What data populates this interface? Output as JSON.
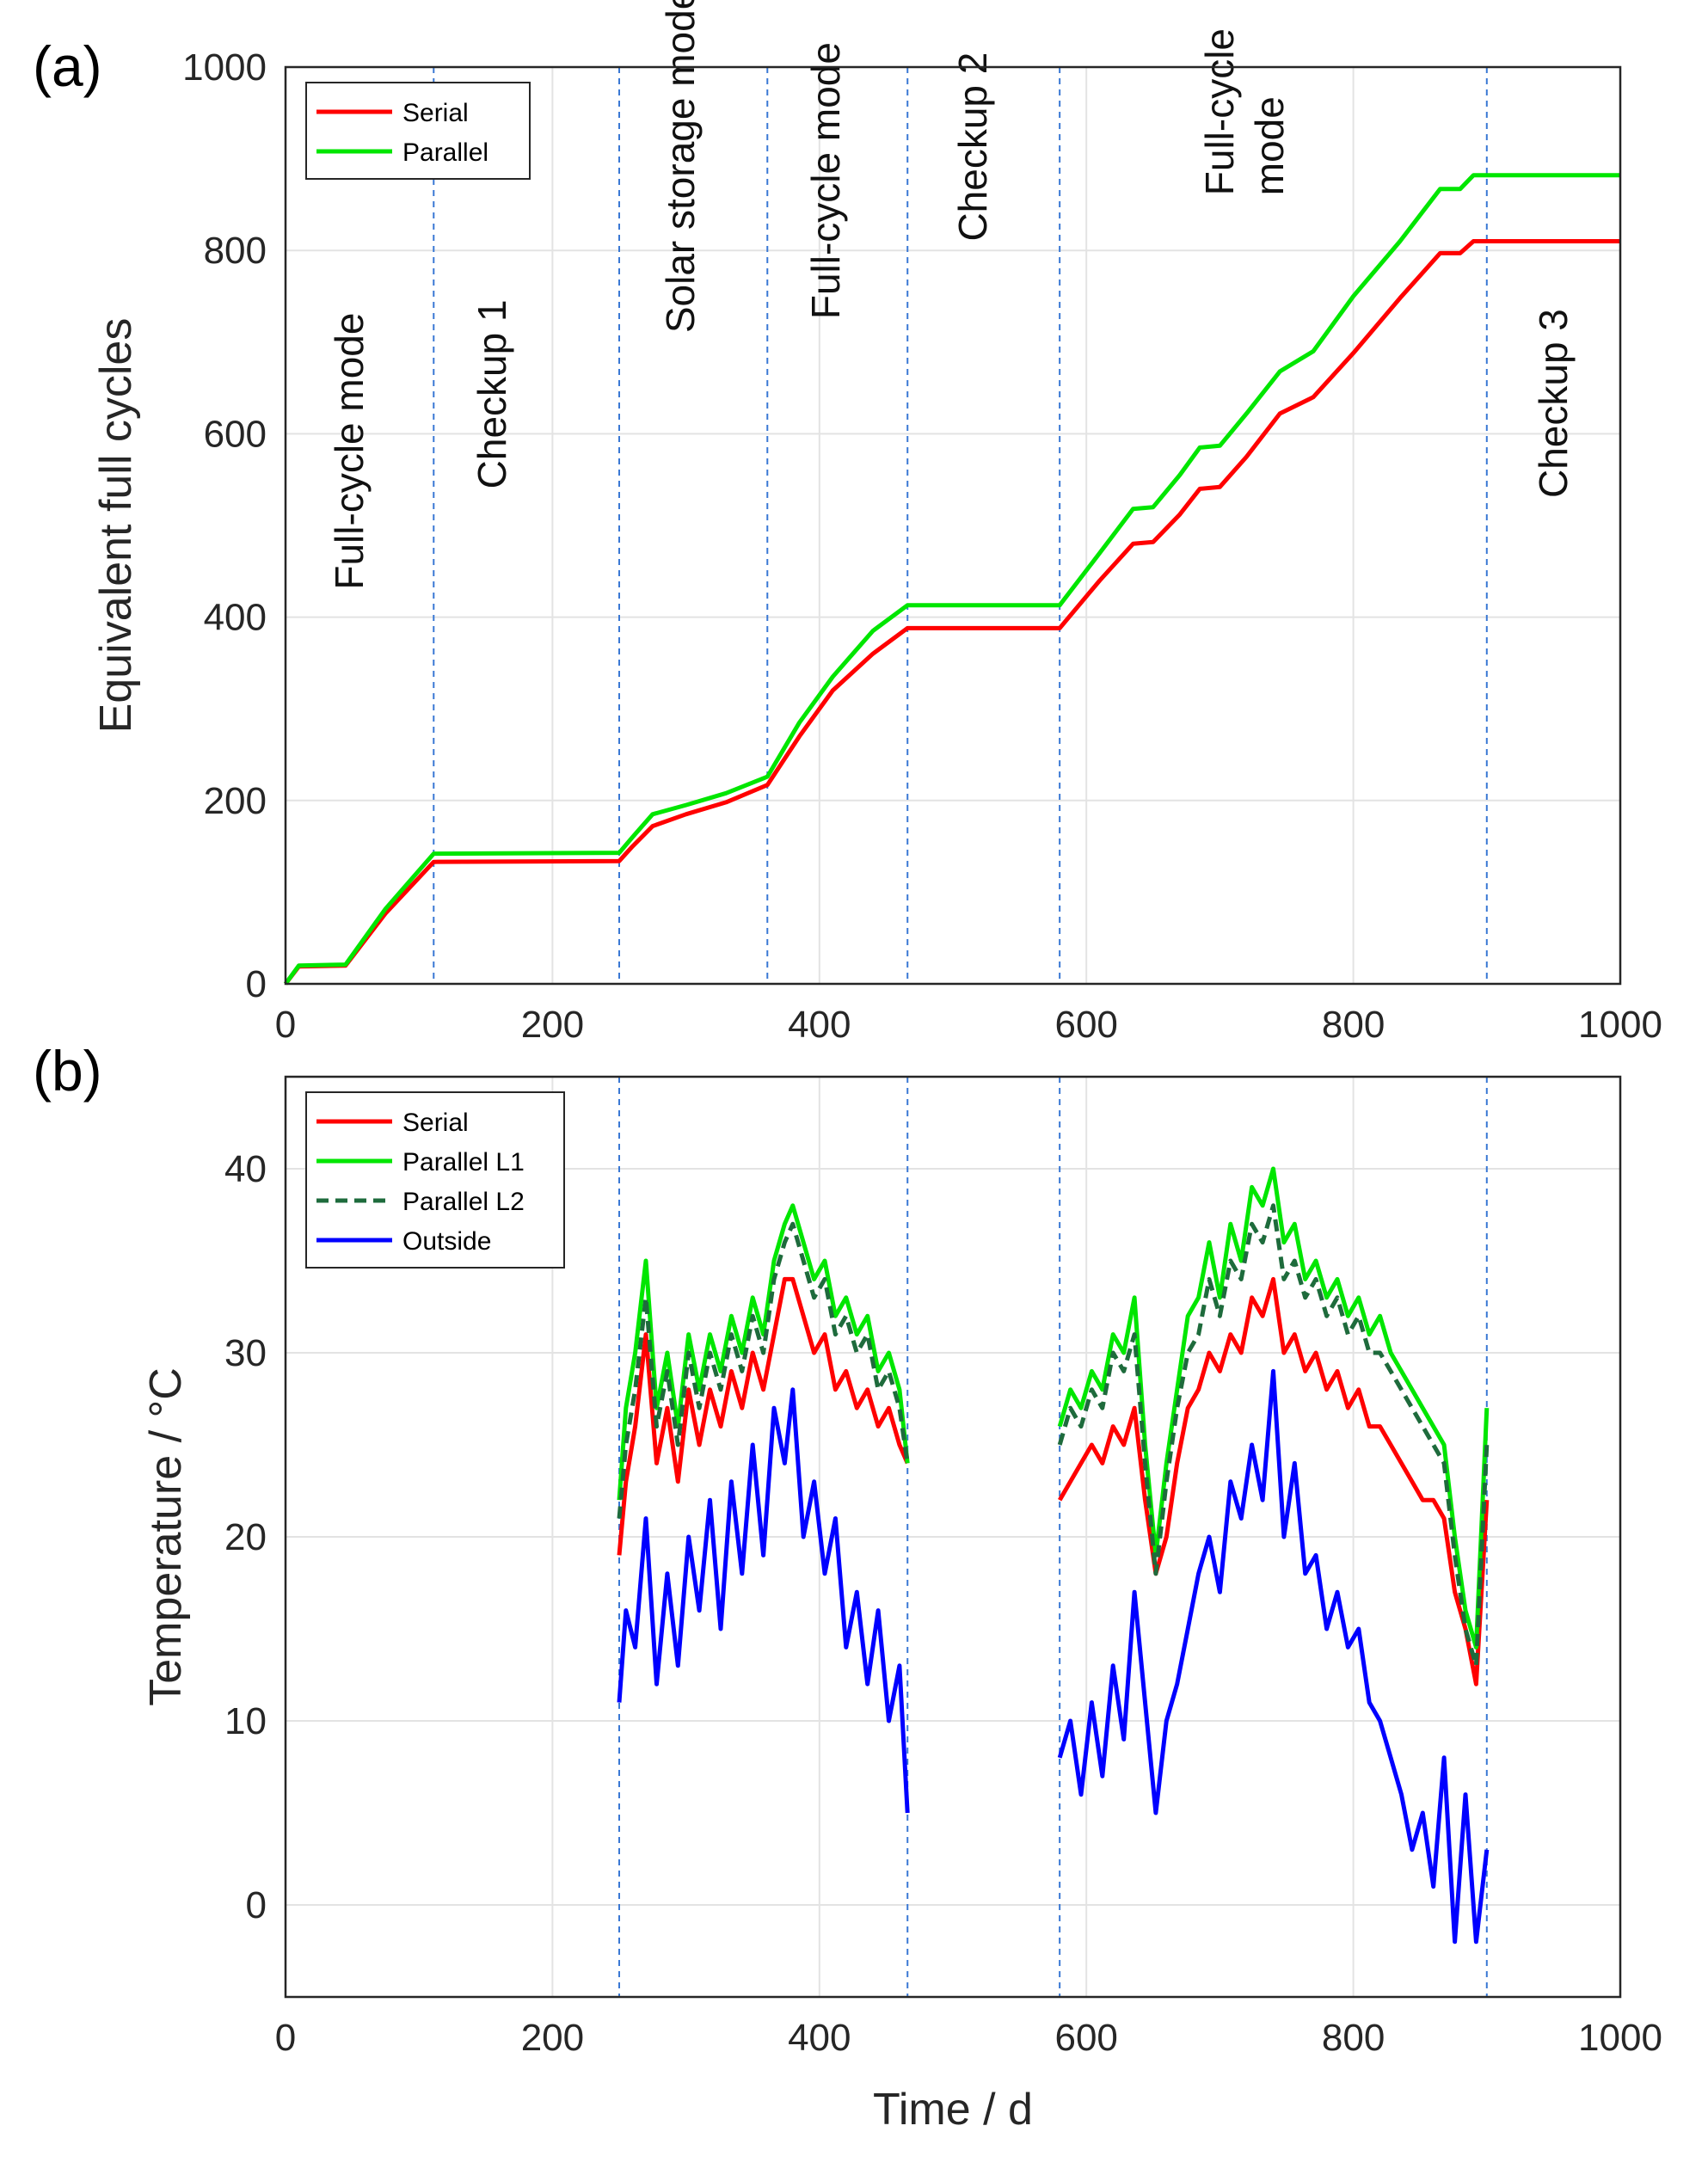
{
  "chart_data": [
    {
      "panel_label": "(a)",
      "type": "line",
      "title": "",
      "xlabel": "",
      "ylabel": "Equivalent full cycles",
      "xlim": [
        0,
        1000
      ],
      "ylim": [
        0,
        1000
      ],
      "xticks": [
        0,
        200,
        400,
        600,
        800,
        1000
      ],
      "yticks": [
        0,
        200,
        400,
        600,
        800,
        1000
      ],
      "grid": true,
      "legend_position": "top-left",
      "phase_boundaries": [
        111,
        250,
        361,
        466,
        580,
        900
      ],
      "phase_labels": [
        {
          "text": "Full-cycle mode",
          "x": 58,
          "y": 430
        },
        {
          "text": "Checkup 1",
          "x": 165,
          "y": 540
        },
        {
          "text": "Solar storage mode",
          "x": 306,
          "y": 710
        },
        {
          "text": "Full-cycle mode",
          "x": 415,
          "y": 725
        },
        {
          "text": "Checkup 2",
          "x": 525,
          "y": 810
        },
        {
          "text": "Full-cycle\nmode",
          "x": 710,
          "y": 860
        },
        {
          "text": "Checkup 3",
          "x": 960,
          "y": 530
        }
      ],
      "series": [
        {
          "name": "Serial",
          "color": "#ff0000",
          "x": [
            0,
            10,
            45,
            75,
            111,
            250,
            260,
            275,
            300,
            330,
            361,
            385,
            410,
            440,
            466,
            580,
            610,
            635,
            650,
            670,
            685,
            700,
            720,
            745,
            770,
            800,
            835,
            865,
            880,
            890,
            1000
          ],
          "y": [
            0,
            19,
            20,
            77,
            133,
            134,
            150,
            172,
            185,
            198,
            217,
            270,
            320,
            360,
            388,
            388,
            440,
            480,
            482,
            512,
            540,
            542,
            575,
            622,
            640,
            688,
            748,
            797,
            797,
            810,
            810
          ]
        },
        {
          "name": "Parallel",
          "color": "#00e600",
          "x": [
            0,
            10,
            45,
            75,
            111,
            250,
            260,
            275,
            300,
            330,
            361,
            385,
            410,
            440,
            466,
            580,
            610,
            635,
            650,
            670,
            685,
            700,
            720,
            745,
            770,
            800,
            835,
            865,
            880,
            890,
            1000
          ],
          "y": [
            0,
            20,
            21,
            82,
            142,
            143,
            160,
            185,
            195,
            208,
            226,
            285,
            335,
            385,
            413,
            413,
            470,
            518,
            520,
            555,
            585,
            587,
            622,
            668,
            690,
            750,
            810,
            867,
            867,
            882,
            882
          ]
        }
      ]
    },
    {
      "panel_label": "(b)",
      "type": "line",
      "title": "",
      "xlabel": "Time / d",
      "ylabel": "Temperature / °C",
      "xlim": [
        0,
        1000
      ],
      "ylim": [
        -5,
        45
      ],
      "xticks": [
        0,
        200,
        400,
        600,
        800,
        1000
      ],
      "yticks": [
        0,
        10,
        20,
        30,
        40
      ],
      "grid": true,
      "legend_position": "top-left",
      "phase_boundaries": [
        250,
        466,
        580,
        900
      ],
      "series": [
        {
          "name": "Serial",
          "color": "#ff0000",
          "style": "solid",
          "segments": [
            {
              "x": [
                250,
                255,
                262,
                270,
                278,
                286,
                294,
                302,
                310,
                318,
                326,
                334,
                342,
                350,
                358,
                366,
                374,
                380,
                388,
                396,
                404,
                412,
                420,
                428,
                436,
                444,
                452,
                460,
                466
              ],
              "y": [
                19,
                23,
                26,
                31,
                24,
                27,
                23,
                28,
                25,
                28,
                26,
                29,
                27,
                30,
                28,
                31,
                34,
                34,
                32,
                30,
                31,
                28,
                29,
                27,
                28,
                26,
                27,
                25,
                24
              ]
            },
            {
              "x": [
                580,
                588,
                596,
                604,
                612,
                620,
                628,
                636,
                644,
                652,
                660,
                668,
                676,
                684,
                692,
                700,
                708,
                716,
                724,
                732,
                740,
                748,
                756,
                764,
                772,
                780,
                788,
                796,
                804,
                812,
                820,
                828,
                836,
                844,
                852,
                860,
                868,
                876,
                884,
                892,
                900
              ],
              "y": [
                22,
                23,
                24,
                25,
                24,
                26,
                25,
                27,
                22,
                18,
                20,
                24,
                27,
                28,
                30,
                29,
                31,
                30,
                33,
                32,
                34,
                30,
                31,
                29,
                30,
                28,
                29,
                27,
                28,
                26,
                26,
                25,
                24,
                23,
                22,
                22,
                21,
                17,
                15,
                12,
                22
              ]
            }
          ]
        },
        {
          "name": "Parallel L1",
          "color": "#00e600",
          "style": "solid",
          "segments": [
            {
              "x": [
                250,
                255,
                262,
                270,
                278,
                286,
                294,
                302,
                310,
                318,
                326,
                334,
                342,
                350,
                358,
                366,
                374,
                380,
                388,
                396,
                404,
                412,
                420,
                428,
                436,
                444,
                452,
                460,
                466
              ],
              "y": [
                22,
                27,
                30,
                35,
                27,
                30,
                26,
                31,
                28,
                31,
                29,
                32,
                30,
                33,
                31,
                35,
                37,
                38,
                36,
                34,
                35,
                32,
                33,
                31,
                32,
                29,
                30,
                28,
                24
              ]
            },
            {
              "x": [
                580,
                588,
                596,
                604,
                612,
                620,
                628,
                636,
                644,
                652,
                660,
                668,
                676,
                684,
                692,
                700,
                708,
                716,
                724,
                732,
                740,
                748,
                756,
                764,
                772,
                780,
                788,
                796,
                804,
                812,
                820,
                828,
                836,
                844,
                852,
                860,
                868,
                876,
                884,
                892,
                900
              ],
              "y": [
                26,
                28,
                27,
                29,
                28,
                31,
                30,
                33,
                25,
                19,
                24,
                28,
                32,
                33,
                36,
                33,
                37,
                35,
                39,
                38,
                40,
                36,
                37,
                34,
                35,
                33,
                34,
                32,
                33,
                31,
                32,
                30,
                29,
                28,
                27,
                26,
                25,
                20,
                16,
                14,
                27
              ]
            }
          ]
        },
        {
          "name": "Parallel L2",
          "color": "#1e6b3c",
          "style": "dashed",
          "segments": [
            {
              "x": [
                250,
                255,
                262,
                270,
                278,
                286,
                294,
                302,
                310,
                318,
                326,
                334,
                342,
                350,
                358,
                366,
                374,
                380,
                388,
                396,
                404,
                412,
                420,
                428,
                436,
                444,
                452,
                460,
                466
              ],
              "y": [
                21,
                25,
                28,
                33,
                26,
                29,
                25,
                30,
                27,
                30,
                28,
                31,
                29,
                32,
                30,
                34,
                36,
                37,
                35,
                33,
                34,
                31,
                32,
                30,
                31,
                28,
                29,
                27,
                24
              ]
            },
            {
              "x": [
                580,
                588,
                596,
                604,
                612,
                620,
                628,
                636,
                644,
                652,
                660,
                668,
                676,
                684,
                692,
                700,
                708,
                716,
                724,
                732,
                740,
                748,
                756,
                764,
                772,
                780,
                788,
                796,
                804,
                812,
                820,
                828,
                836,
                844,
                852,
                860,
                868,
                876,
                884,
                892,
                900
              ],
              "y": [
                25,
                27,
                26,
                28,
                27,
                30,
                29,
                31,
                24,
                18,
                23,
                27,
                30,
                31,
                34,
                32,
                35,
                34,
                37,
                36,
                38,
                34,
                35,
                33,
                34,
                32,
                33,
                31,
                32,
                30,
                30,
                29,
                28,
                27,
                26,
                25,
                24,
                19,
                15,
                13,
                25
              ]
            }
          ]
        },
        {
          "name": "Outside",
          "color": "#0000ff",
          "style": "solid",
          "segments": [
            {
              "x": [
                250,
                255,
                262,
                270,
                278,
                286,
                294,
                302,
                310,
                318,
                326,
                334,
                342,
                350,
                358,
                366,
                374,
                380,
                388,
                396,
                404,
                412,
                420,
                428,
                436,
                444,
                452,
                460,
                466
              ],
              "y": [
                11,
                16,
                14,
                21,
                12,
                18,
                13,
                20,
                16,
                22,
                15,
                23,
                18,
                25,
                19,
                27,
                24,
                28,
                20,
                23,
                18,
                21,
                14,
                17,
                12,
                16,
                10,
                13,
                5
              ]
            },
            {
              "x": [
                580,
                588,
                596,
                604,
                612,
                620,
                628,
                636,
                644,
                652,
                660,
                668,
                676,
                684,
                692,
                700,
                708,
                716,
                724,
                732,
                740,
                748,
                756,
                764,
                772,
                780,
                788,
                796,
                804,
                812,
                820,
                828,
                836,
                844,
                852,
                860,
                868,
                876,
                884,
                892,
                900
              ],
              "y": [
                8,
                10,
                6,
                11,
                7,
                13,
                9,
                17,
                11,
                5,
                10,
                12,
                15,
                18,
                20,
                17,
                23,
                21,
                25,
                22,
                29,
                20,
                24,
                18,
                19,
                15,
                17,
                14,
                15,
                11,
                10,
                8,
                6,
                3,
                5,
                1,
                8,
                -2,
                6,
                -2,
                3
              ]
            }
          ]
        }
      ]
    }
  ]
}
